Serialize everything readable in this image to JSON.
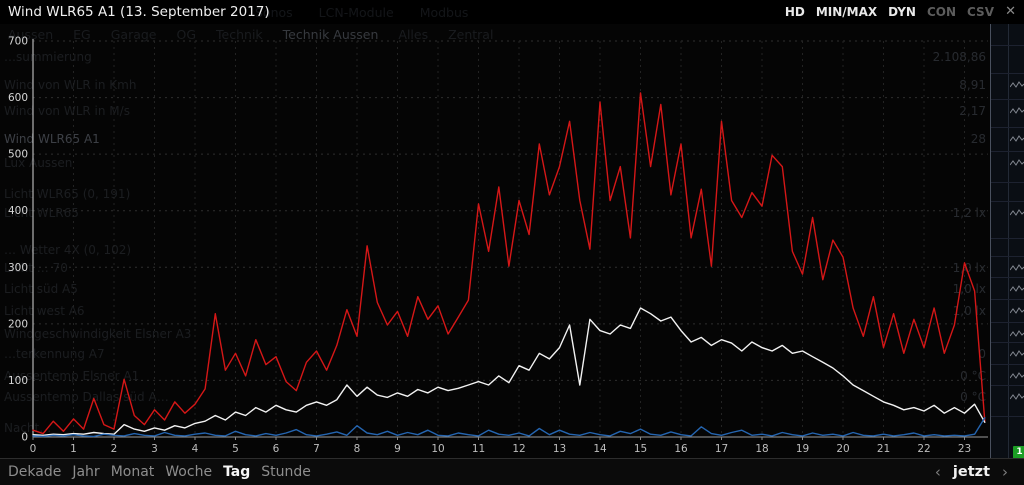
{
  "title_bar": {
    "title": "Wind WLR65 A1 (13. September 2017)",
    "controls": [
      {
        "label": "HD",
        "active": true
      },
      {
        "label": "MIN/MAX",
        "active": true
      },
      {
        "label": "DYN",
        "active": true
      },
      {
        "label": "CON",
        "active": false
      },
      {
        "label": "CSV",
        "active": false
      }
    ],
    "close_glyph": "✕"
  },
  "background": {
    "tabs_row1": [
      "Sonos",
      "LCN-Module",
      "Modbus"
    ],
    "tabs_row2": [
      "Aussen",
      "EG",
      "Garage",
      "OG",
      "Technik",
      "Technik Aussen",
      "Alles",
      "Zentral"
    ],
    "tabs_row2_active": "Technik Aussen",
    "badge_count": "1",
    "sensor_rows": [
      {
        "y": 57,
        "label": "…summierung",
        "value": "2.108,86",
        "spark": false,
        "selected": false
      },
      {
        "y": 85,
        "label": "Wind von WLR in Kmh",
        "value": "8,91",
        "spark": true,
        "selected": false
      },
      {
        "y": 111,
        "label": "Wind von WLR in M/s",
        "value": "2,17",
        "spark": true,
        "selected": false
      },
      {
        "y": 139,
        "label": "Wind WLR65 A1",
        "value": "28",
        "spark": true,
        "selected": true
      },
      {
        "y": 163,
        "label": "Lux Aussen",
        "value": "",
        "spark": true,
        "selected": false
      },
      {
        "y": 194,
        "label": "Licht WLR65 (0, 191)",
        "value": "",
        "spark": false,
        "selected": false
      },
      {
        "y": 213,
        "label": "Licht WLR65",
        "value": "1,2 lx",
        "spark": true,
        "selected": false
      },
      {
        "y": 250,
        "label": "… Wetter 4X (0, 102)",
        "value": "",
        "spark": false,
        "selected": false
      },
      {
        "y": 268,
        "label": "Licht … 70",
        "value": "1,0 lx",
        "spark": true,
        "selected": false
      },
      {
        "y": 289,
        "label": "Licht süd A5",
        "value": "1,0 lx",
        "spark": true,
        "selected": false
      },
      {
        "y": 311,
        "label": "Licht west A6",
        "value": "1,0 lx",
        "spark": true,
        "selected": false
      },
      {
        "y": 334,
        "label": "Windgeschwindigkeit Elsner A3",
        "value": "",
        "spark": true,
        "selected": false
      },
      {
        "y": 354,
        "label": "…terkennung A7",
        "value": "0",
        "spark": true,
        "selected": false
      },
      {
        "y": 376,
        "label": "Aussentemp Elsner A1",
        "value": "0 °C",
        "spark": true,
        "selected": false
      },
      {
        "y": 397,
        "label": "Aussentemp Dallas süd A…",
        "value": "0 °C",
        "spark": true,
        "selected": false
      },
      {
        "y": 428,
        "label": "Nacht…",
        "value": "",
        "spark": false,
        "selected": false
      }
    ]
  },
  "chart_data": {
    "type": "line",
    "title": "Wind WLR65 A1 (13. September 2017)",
    "xlabel": "",
    "ylabel": "",
    "xlim": [
      0,
      23.5
    ],
    "ylim": [
      0,
      700
    ],
    "x_ticks": [
      0,
      1,
      2,
      3,
      4,
      5,
      6,
      7,
      8,
      9,
      10,
      11,
      12,
      13,
      14,
      15,
      16,
      17,
      18,
      19,
      20,
      21,
      22,
      23
    ],
    "y_ticks": [
      0,
      100,
      200,
      300,
      400,
      500,
      600,
      700
    ],
    "grid": true,
    "legend": "none",
    "x_start": 0,
    "x_step": 0.25,
    "series": [
      {
        "name": "red-line",
        "color": "#d51717",
        "values": [
          12,
          6,
          28,
          10,
          32,
          14,
          68,
          22,
          14,
          102,
          38,
          22,
          48,
          30,
          62,
          42,
          58,
          85,
          218,
          118,
          148,
          108,
          172,
          128,
          142,
          98,
          82,
          132,
          152,
          118,
          162,
          225,
          178,
          338,
          238,
          198,
          222,
          178,
          248,
          208,
          232,
          182,
          212,
          242,
          412,
          328,
          442,
          302,
          418,
          358,
          518,
          428,
          478,
          558,
          418,
          332,
          592,
          418,
          478,
          352,
          608,
          478,
          588,
          428,
          518,
          352,
          438,
          302,
          558,
          418,
          388,
          432,
          408,
          498,
          478,
          328,
          288,
          388,
          278,
          348,
          318,
          228,
          178,
          248,
          158,
          218,
          148,
          208,
          158,
          228,
          148,
          198,
          308,
          258,
          28
        ]
      },
      {
        "name": "white-line",
        "color": "#f2f2f2",
        "values": [
          4,
          3,
          5,
          4,
          6,
          5,
          8,
          6,
          5,
          22,
          14,
          10,
          16,
          12,
          20,
          16,
          24,
          28,
          38,
          30,
          44,
          38,
          52,
          44,
          56,
          48,
          44,
          56,
          62,
          56,
          66,
          92,
          72,
          88,
          74,
          70,
          78,
          72,
          84,
          78,
          88,
          82,
          86,
          92,
          98,
          92,
          108,
          96,
          126,
          118,
          148,
          138,
          158,
          198,
          92,
          208,
          188,
          182,
          198,
          192,
          228,
          218,
          205,
          212,
          188,
          168,
          176,
          162,
          172,
          166,
          152,
          168,
          158,
          152,
          162,
          148,
          152,
          142,
          132,
          122,
          108,
          92,
          82,
          72,
          62,
          56,
          48,
          52,
          46,
          56,
          42,
          52,
          42,
          58,
          26
        ]
      },
      {
        "name": "blue-line",
        "color": "#2565b0",
        "values": [
          2,
          1,
          3,
          2,
          4,
          2,
          1,
          5,
          3,
          2,
          6,
          3,
          2,
          8,
          3,
          2,
          5,
          7,
          3,
          2,
          10,
          4,
          2,
          6,
          3,
          7,
          13,
          4,
          2,
          5,
          9,
          3,
          20,
          7,
          4,
          10,
          3,
          8,
          4,
          12,
          3,
          2,
          7,
          4,
          2,
          12,
          5,
          3,
          7,
          2,
          15,
          4,
          12,
          5,
          3,
          8,
          4,
          2,
          10,
          6,
          14,
          5,
          3,
          9,
          4,
          2,
          18,
          6,
          3,
          8,
          12,
          3,
          5,
          2,
          8,
          4,
          2,
          7,
          3,
          5,
          2,
          8,
          3,
          2,
          5,
          2,
          4,
          7,
          2,
          4,
          2,
          3,
          2,
          5,
          34
        ]
      }
    ]
  },
  "footer": {
    "ranges": [
      "Dekade",
      "Jahr",
      "Monat",
      "Woche",
      "Tag",
      "Stunde"
    ],
    "selected_range": "Tag",
    "nav_prev": "‹",
    "nav_now": "jetzt",
    "nav_next": "›"
  },
  "colors": {
    "red": "#d51717",
    "white": "#f2f2f2",
    "blue": "#2565b0",
    "badge_green": "#1c9e25"
  }
}
